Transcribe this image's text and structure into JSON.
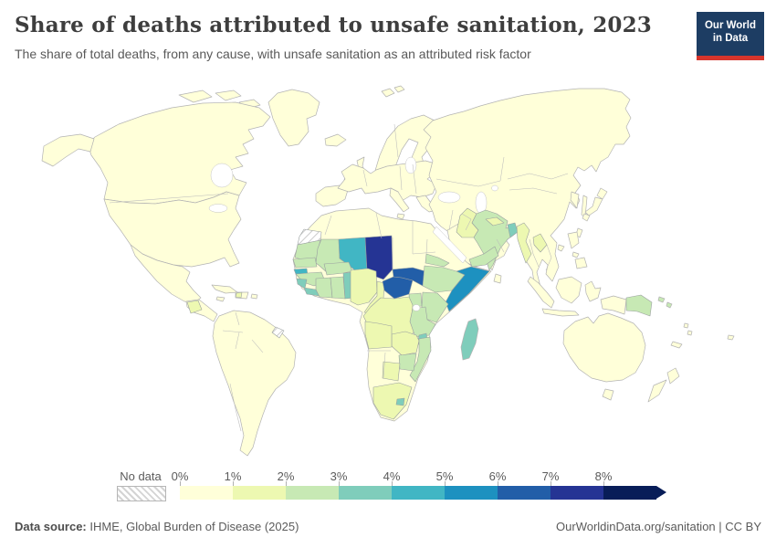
{
  "header": {
    "title": "Share of deaths attributed to unsafe sanitation, 2023",
    "subtitle": "The share of total deaths, from any cause, with unsafe sanitation as an attributed risk factor",
    "logo": {
      "line1": "Our World",
      "line2": "in Data",
      "bg_color": "#1d3d63",
      "accent_color": "#d7352c"
    }
  },
  "legend": {
    "no_data_label": "No data",
    "bins": [
      {
        "tick": "0%",
        "range": "0-1%",
        "color": "#ffffd9"
      },
      {
        "tick": "1%",
        "range": "1-2%",
        "color": "#edf8b1"
      },
      {
        "tick": "2%",
        "range": "2-3%",
        "color": "#c7e9b4"
      },
      {
        "tick": "3%",
        "range": "3-4%",
        "color": "#7fcdbb"
      },
      {
        "tick": "4%",
        "range": "4-5%",
        "color": "#41b6c4"
      },
      {
        "tick": "5%",
        "range": "5-6%",
        "color": "#1d91c0"
      },
      {
        "tick": "6%",
        "range": "6-7%",
        "color": "#225ea8"
      },
      {
        "tick": "7%",
        "range": "7-8%",
        "color": "#253494"
      },
      {
        "tick": "8%",
        "range": "8%+",
        "color": "#081d58"
      }
    ]
  },
  "footer": {
    "source_label": "Data source:",
    "source_text": " IHME, Global Burden of Disease (2025)",
    "right_text": "OurWorldinData.org/sanitation | CC BY"
  },
  "map": {
    "ocean_color": "#ffffff",
    "land_border_color": "#b3b3b3",
    "default_bucket": "0-1%",
    "palette": {
      "0-1%": "#ffffd9",
      "1-2%": "#edf8b1",
      "2-3%": "#c7e9b4",
      "3-4%": "#7fcdbb",
      "4-5%": "#41b6c4",
      "5-6%": "#1d91c0",
      "6-7%": "#225ea8",
      "7-8%": "#253494",
      "8%+": "#081d58",
      "no-data": "hatch"
    },
    "regions": {
      "western-sahara": "no-data",
      "french-guiana": "no-data",
      "mauritania": "2-3%",
      "mali": "2-3%",
      "senegal": "2-3%",
      "guinea-bissau": "4-5%",
      "guinea": "2-3%",
      "sierra-leone": "3-4%",
      "liberia": "3-4%",
      "cote-divoire": "2-3%",
      "ghana": "2-3%",
      "togo-benin": "3-4%",
      "burkina-faso": "2-3%",
      "niger": "4-5%",
      "chad": "7-8%",
      "nigeria": "1-2%",
      "cameroon": "1-2%",
      "central-african-republic": "6-7%",
      "south-sudan": "6-7%",
      "eritrea": "2-3%",
      "ethiopia": "2-3%",
      "somalia": "5-6%",
      "uganda": "2-3%",
      "kenya": "2-3%",
      "rwanda-burundi": "3-4%",
      "dr-congo": "1-2%",
      "tanzania": "2-3%",
      "malawi": "3-4%",
      "zambia": "1-2%",
      "angola": "1-2%",
      "mozambique": "2-3%",
      "zimbabwe": "2-3%",
      "botswana": "1-2%",
      "south-africa": "1-2%",
      "lesotho": "3-4%",
      "madagascar": "3-4%",
      "pakistan": "1-2%",
      "india": "2-3%",
      "nepal": "1-2%",
      "bangladesh": "3-4%",
      "myanmar": "1-2%",
      "laos": "1-2%",
      "yemen": "2-3%",
      "papua-new-guinea": "2-3%",
      "solomon-islands": "2-3%",
      "guatemala": "1-2%",
      "haiti": "1-2%"
    }
  },
  "chart_data": {
    "type": "choropleth_map",
    "title": "Share of deaths attributed to unsafe sanitation, 2023",
    "subtitle": "The share of total deaths, from any cause, with unsafe sanitation as an attributed risk factor",
    "unit": "% of deaths",
    "year": 2023,
    "legend_bins": [
      "0%",
      "1%",
      "2%",
      "3%",
      "4%",
      "5%",
      "6%",
      "7%",
      "8%",
      "8%+"
    ],
    "values": {
      "Chad": "7-8%",
      "South Sudan": "6-7%",
      "Central African Republic": "6-7%",
      "Somalia": "5-6%",
      "Niger": "4-5%",
      "Guinea-Bissau": "4-5%",
      "Madagascar": "3-4%",
      "Malawi": "3-4%",
      "Sierra Leone": "3-4%",
      "Liberia": "3-4%",
      "Togo/Benin": "3-4%",
      "Rwanda/Burundi": "3-4%",
      "Lesotho": "3-4%",
      "Bangladesh": "3-4%",
      "Mauritania": "2-3%",
      "Mali": "2-3%",
      "Senegal": "2-3%",
      "Guinea": "2-3%",
      "Cote d'Ivoire": "2-3%",
      "Ghana": "2-3%",
      "Burkina Faso": "2-3%",
      "Eritrea": "2-3%",
      "Ethiopia": "2-3%",
      "Uganda": "2-3%",
      "Kenya": "2-3%",
      "Tanzania": "2-3%",
      "Mozambique": "2-3%",
      "Zimbabwe": "2-3%",
      "India": "2-3%",
      "Yemen": "2-3%",
      "Papua New Guinea": "2-3%",
      "Solomon Islands": "2-3%",
      "Nigeria": "1-2%",
      "Cameroon": "1-2%",
      "DR Congo": "1-2%",
      "Zambia": "1-2%",
      "Angola": "1-2%",
      "Botswana": "1-2%",
      "South Africa": "1-2%",
      "Pakistan": "1-2%",
      "Nepal": "1-2%",
      "Myanmar": "1-2%",
      "Laos": "1-2%",
      "Guatemala": "1-2%",
      "Haiti": "1-2%",
      "Western Sahara": "No data",
      "French Guiana": "No data",
      "Rest of world": "0-1%"
    }
  }
}
